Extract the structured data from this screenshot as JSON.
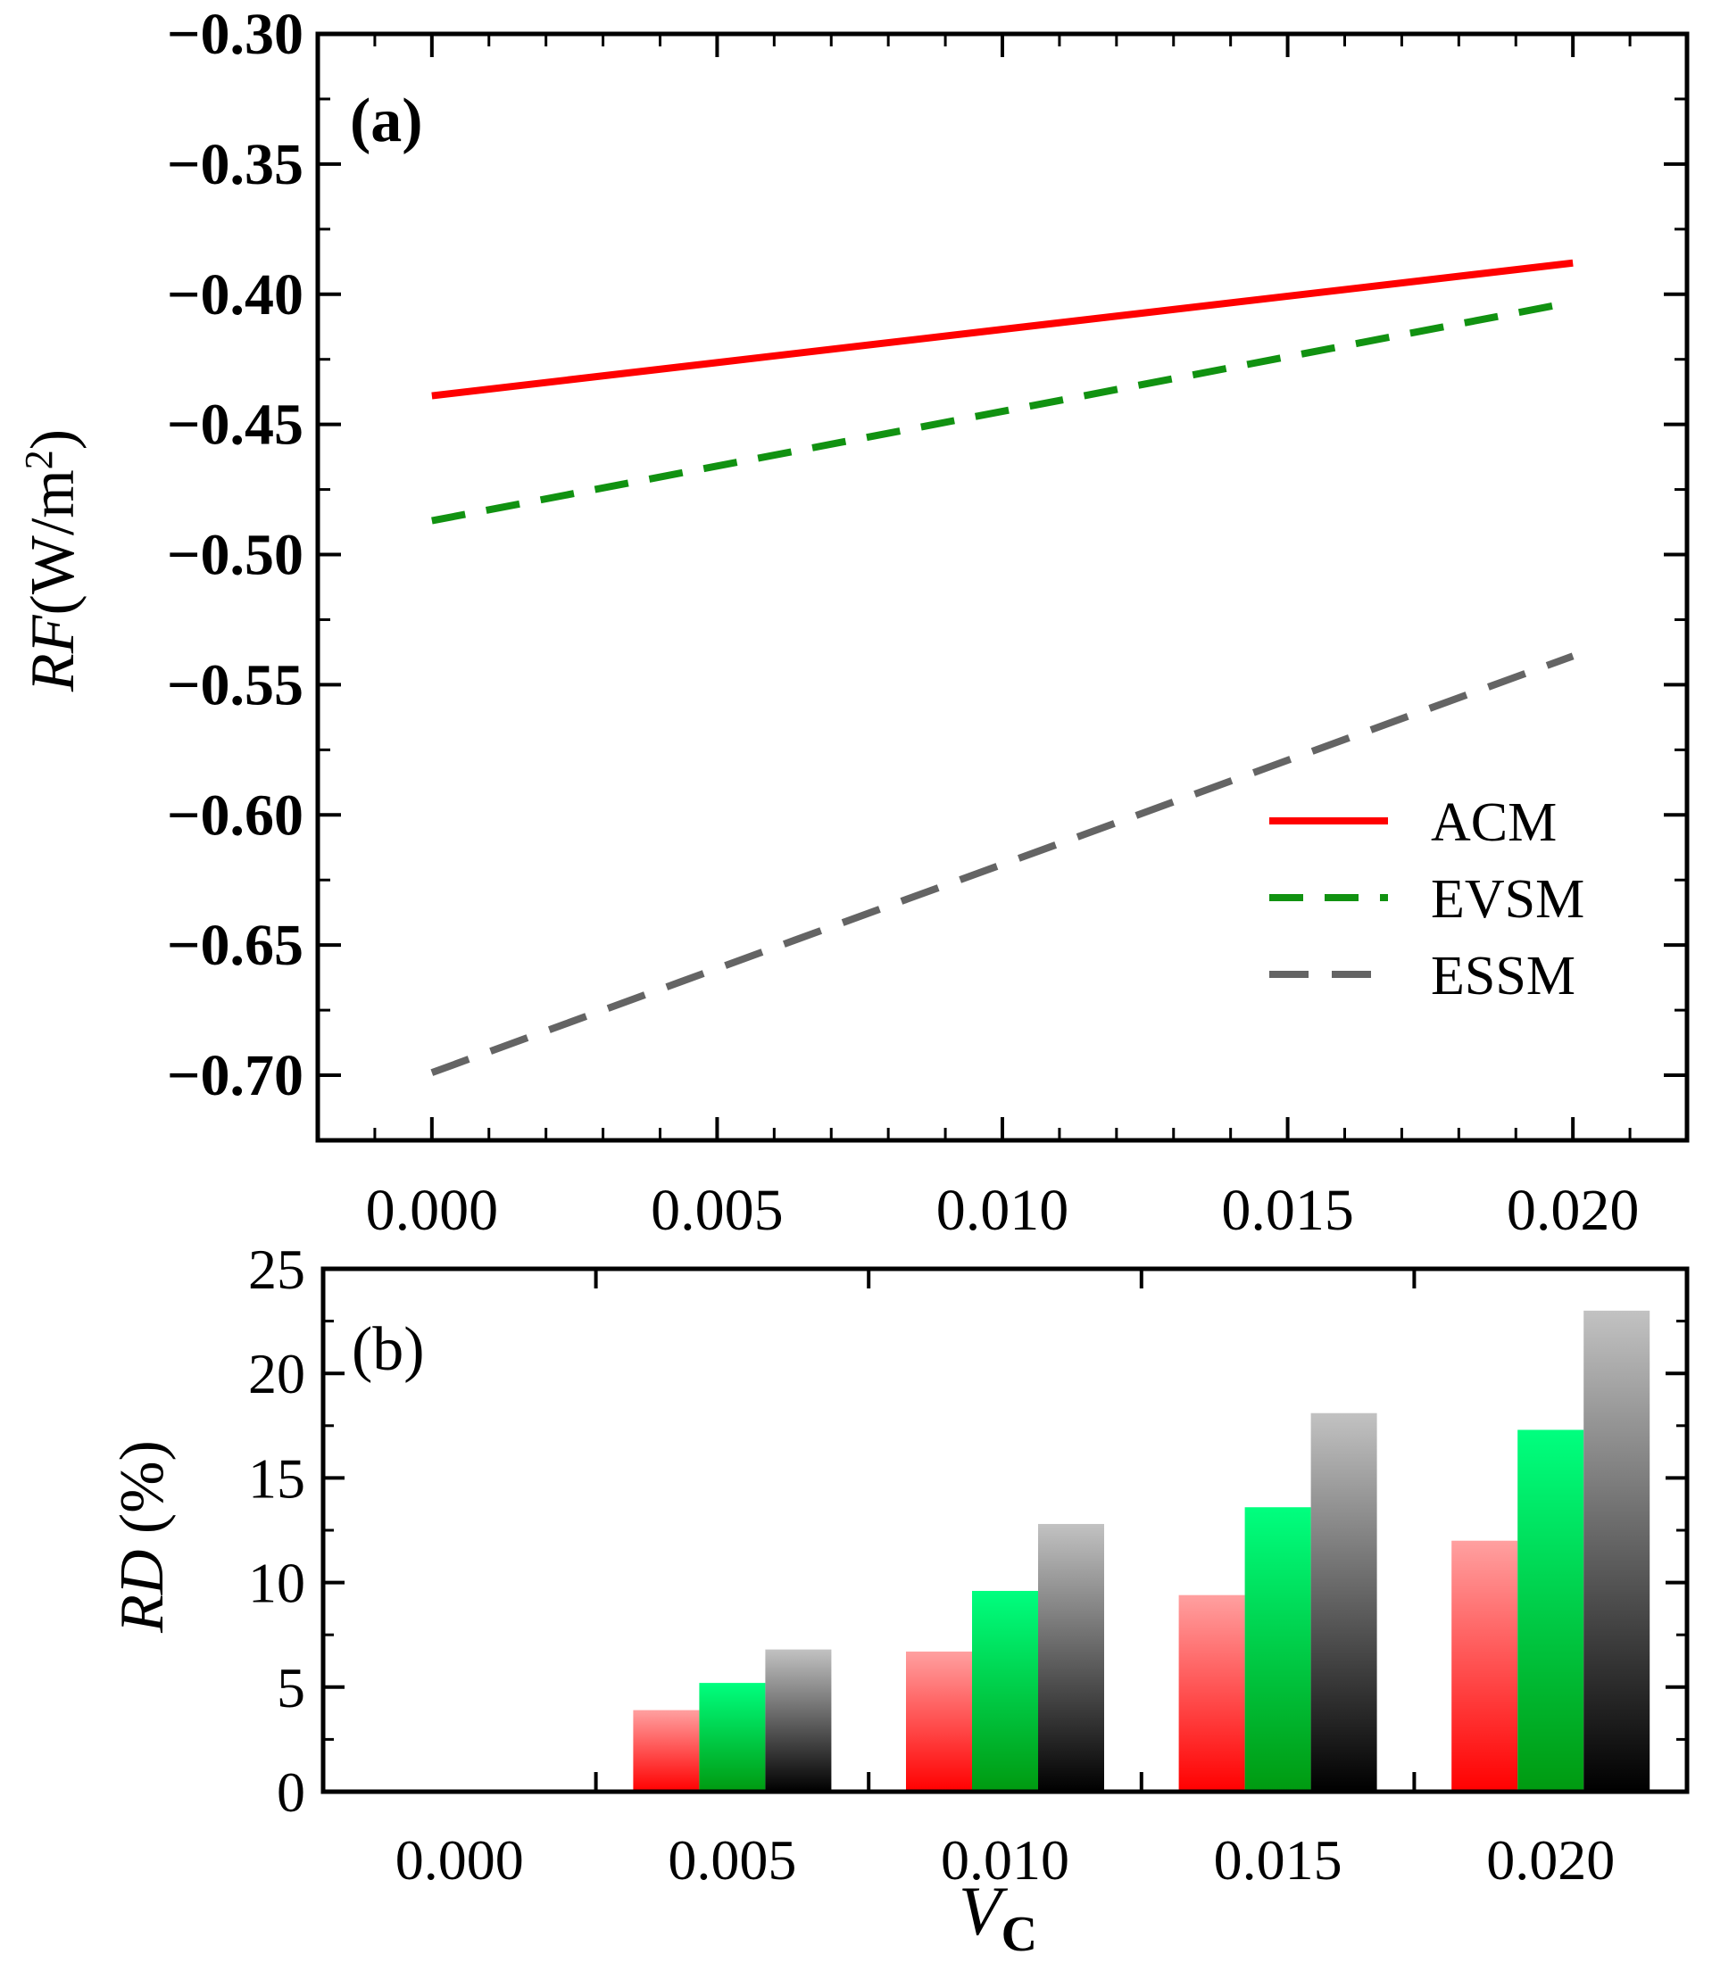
{
  "colors": {
    "ACM": "#ff0000",
    "EVSM": "#119211",
    "ESSM": "#646464",
    "bar_ACM_top": "#ffa0a0",
    "bar_ACM_bottom": "#ff0000",
    "bar_EVSM_top": "#00ff7f",
    "bar_EVSM_bottom": "#009a10",
    "bar_ESSM_top": "#c2c2c2",
    "bar_ESSM_bottom": "#000000"
  },
  "chart_data": [
    {
      "type": "line",
      "panel_label": "(a)",
      "ylabel": "RF(W/m²)",
      "ylabel_italic": "RF",
      "ylabel_unit": "(W/m",
      "ylabel_sup": "2",
      "ylabel_close": ")",
      "xlabel": "",
      "x": [
        0.0,
        0.02
      ],
      "xlim": [
        -0.002,
        0.022
      ],
      "ylim": [
        -0.725,
        -0.3
      ],
      "xticks": [
        0.0,
        0.005,
        0.01,
        0.015,
        0.02
      ],
      "xtick_labels": [
        "0.000",
        "0.005",
        "0.010",
        "0.015",
        "0.020"
      ],
      "yticks": [
        -0.3,
        -0.35,
        -0.4,
        -0.45,
        -0.5,
        -0.55,
        -0.6,
        -0.65,
        -0.7
      ],
      "ytick_labels": [
        "−0.30",
        "−0.35",
        "−0.40",
        "−0.45",
        "−0.50",
        "−0.55",
        "−0.60",
        "−0.65",
        "−0.70"
      ],
      "series": [
        {
          "name": "ACM",
          "style": "solid",
          "values": [
            -0.439,
            -0.388
          ]
        },
        {
          "name": "EVSM",
          "style": "dashed",
          "values": [
            -0.487,
            -0.403
          ]
        },
        {
          "name": "ESSM",
          "style": "dashed",
          "values": [
            -0.699,
            -0.539
          ]
        }
      ],
      "legend": [
        "ACM",
        "EVSM",
        "ESSM"
      ],
      "legend_position": "right-middle"
    },
    {
      "type": "bar",
      "panel_label": "(b)",
      "ylabel": "RD (%)",
      "ylabel_italic": "RD",
      "ylabel_rest": " (%)",
      "xlabel": "VC",
      "xlabel_main": "V",
      "xlabel_sub": "C",
      "categories": [
        "0.000",
        "0.005",
        "0.010",
        "0.015",
        "0.020"
      ],
      "ylim": [
        0,
        25
      ],
      "yticks": [
        0,
        5,
        10,
        15,
        20,
        25
      ],
      "ytick_labels": [
        "0",
        "5",
        "10",
        "15",
        "20",
        "25"
      ],
      "series": [
        {
          "name": "ACM",
          "values": [
            0,
            3.9,
            6.7,
            9.4,
            12.0
          ]
        },
        {
          "name": "EVSM",
          "values": [
            0,
            5.2,
            9.6,
            13.6,
            17.3
          ]
        },
        {
          "name": "ESSM",
          "values": [
            0,
            6.8,
            12.8,
            18.1,
            23.0
          ]
        }
      ]
    }
  ]
}
